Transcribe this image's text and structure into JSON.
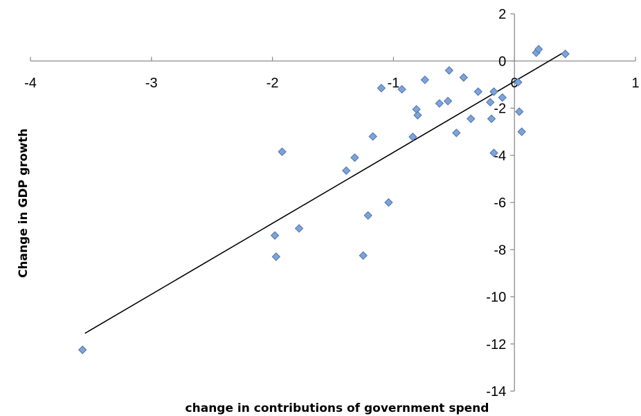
{
  "chart_data": {
    "type": "scatter",
    "title": "",
    "xlabel": "change in contributions of government spend",
    "ylabel": "Change in GDP growth",
    "xlim": [
      -4,
      1
    ],
    "ylim": [
      -14,
      2
    ],
    "x_ticks": [
      -4,
      -3,
      -2,
      -1,
      0,
      1
    ],
    "y_ticks": [
      2,
      0,
      -2,
      -4,
      -6,
      -8,
      -10,
      -12,
      -14
    ],
    "grid": false,
    "legend": "none",
    "marker_color": "#7FA3D8",
    "marker_edge_color": "#4A74B0",
    "trendline": {
      "type": "linear",
      "x_start": -3.55,
      "y_start": -11.55,
      "x_end": 0.42,
      "y_end": 0.4,
      "color": "#000000"
    },
    "points": [
      {
        "x": -3.57,
        "y": -12.25
      },
      {
        "x": -1.92,
        "y": -3.85
      },
      {
        "x": -1.98,
        "y": -7.4
      },
      {
        "x": -1.97,
        "y": -8.3
      },
      {
        "x": -1.78,
        "y": -7.1
      },
      {
        "x": -1.39,
        "y": -4.65
      },
      {
        "x": -1.32,
        "y": -4.1
      },
      {
        "x": -1.25,
        "y": -8.25
      },
      {
        "x": -1.21,
        "y": -6.55
      },
      {
        "x": -1.17,
        "y": -3.2
      },
      {
        "x": -1.04,
        "y": -6.0
      },
      {
        "x": -1.1,
        "y": -1.15
      },
      {
        "x": -0.93,
        "y": -1.2
      },
      {
        "x": -0.84,
        "y": -3.22
      },
      {
        "x": -0.81,
        "y": -2.05
      },
      {
        "x": -0.8,
        "y": -2.3
      },
      {
        "x": -0.74,
        "y": -0.8
      },
      {
        "x": -0.62,
        "y": -1.8
      },
      {
        "x": -0.55,
        "y": -1.7
      },
      {
        "x": -0.54,
        "y": -0.4
      },
      {
        "x": -0.48,
        "y": -3.05
      },
      {
        "x": -0.42,
        "y": -0.7
      },
      {
        "x": -0.36,
        "y": -2.45
      },
      {
        "x": -0.3,
        "y": -1.3
      },
      {
        "x": -0.2,
        "y": -1.75
      },
      {
        "x": -0.19,
        "y": -2.45
      },
      {
        "x": -0.17,
        "y": -1.3
      },
      {
        "x": -0.17,
        "y": -3.9
      },
      {
        "x": -0.1,
        "y": -1.55
      },
      {
        "x": 0.03,
        "y": -0.9
      },
      {
        "x": 0.04,
        "y": -2.15
      },
      {
        "x": 0.06,
        "y": -3.0
      },
      {
        "x": 0.18,
        "y": 0.35
      },
      {
        "x": 0.2,
        "y": 0.5
      },
      {
        "x": 0.42,
        "y": 0.3
      }
    ]
  }
}
